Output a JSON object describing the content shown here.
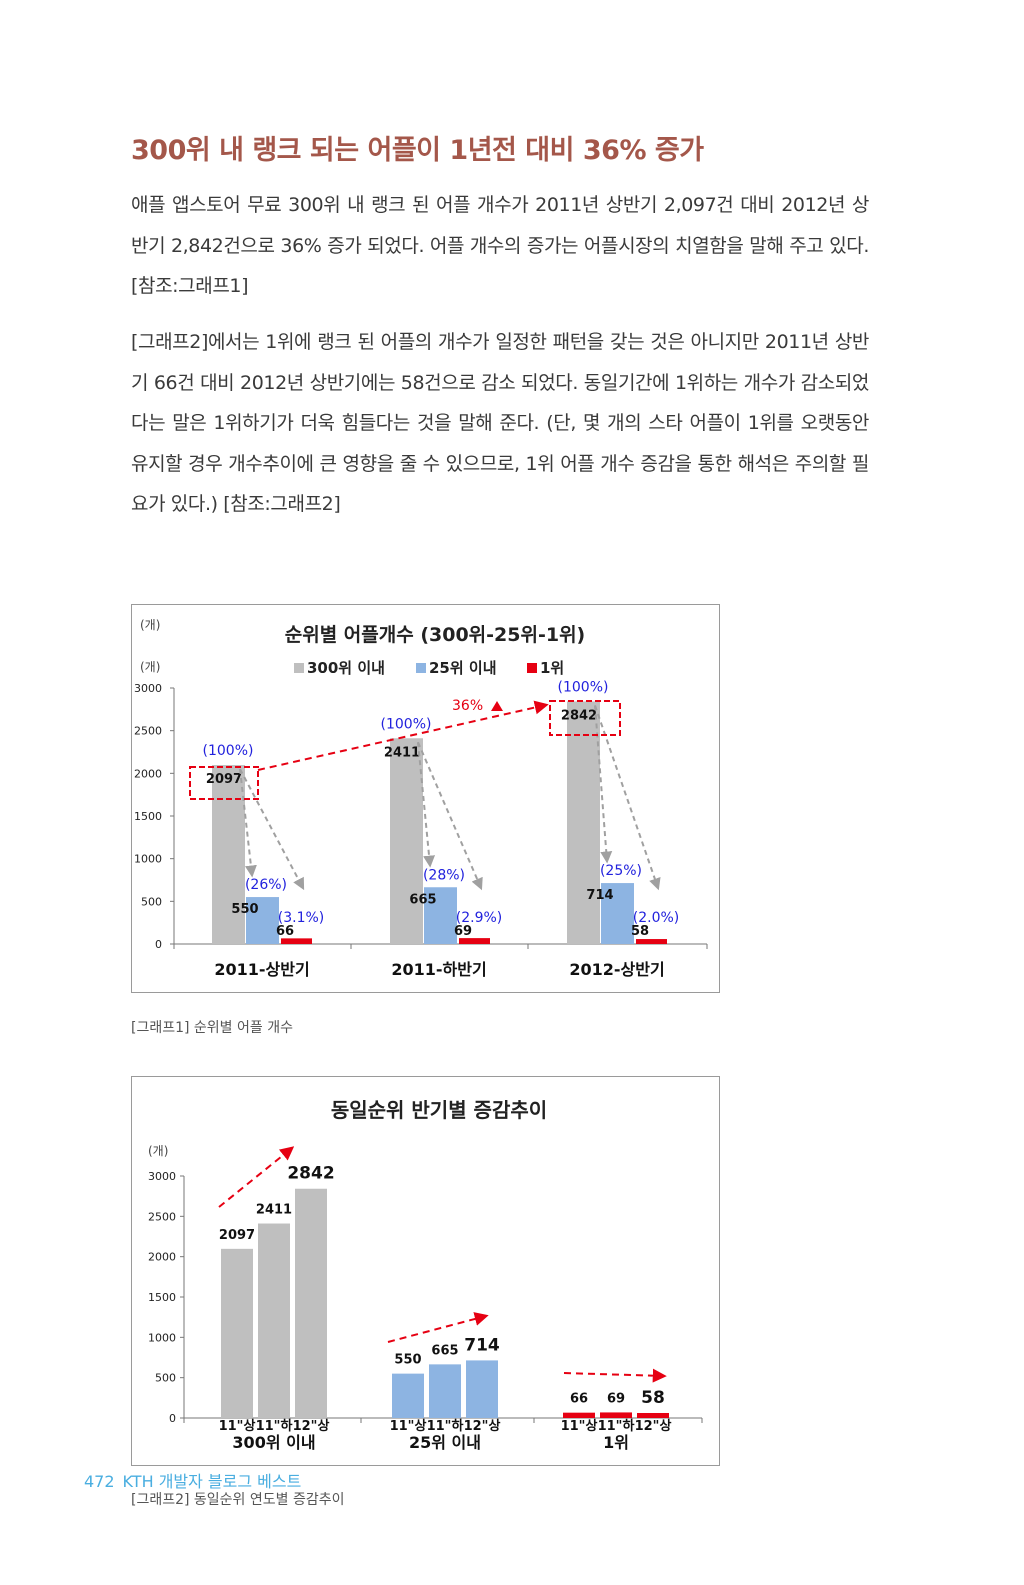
{
  "heading": "300위 내 랭크 되는 어플이 1년전 대비 36% 증가",
  "paragraphs": [
    "애플 앱스토어 무료 300위 내 랭크 된 어플 개수가 2011년 상반기 2,097건 대비 2012년 상반기 2,842건으로 36% 증가 되었다. 어플 개수의 증가는 어플시장의 치열함을 말해 주고 있다. [참조:그래프1]",
    "[그래프2]에서는 1위에 랭크 된 어플의 개수가 일정한 패턴을 갖는 것은 아니지만 2011년 상반기 66건 대비 2012년 상반기에는 58건으로 감소 되었다. 동일기간에 1위하는 개수가 감소되었다는 말은 1위하기가 더욱 힘들다는 것을 말해 준다. (단, 몇 개의 스타 어플이 1위를 오랫동안 유지할 경우 개수추이에 큰 영향을 줄 수 있으므로, 1위 어플 개수 증감을 통한 해석은 주의할 필요가 있다.) [참조:그래프2]"
  ],
  "captions": {
    "figure1": "[그래프1] 순위별 어플 개수",
    "figure2": "[그래프2] 동일순위 연도별 증감추이"
  },
  "footer": {
    "page_number": "472",
    "book_title": "KTH 개발자 블로그 베스트"
  },
  "colors": {
    "heading": "#a4574a",
    "top300": "#bfbfbf",
    "top25": "#8db4e2",
    "first": "#e60012",
    "annotation_blue": "#2222dd",
    "arrow_red": "#e60012",
    "arrow_gray": "#a0a0a0",
    "footer": "#4aaee0"
  },
  "chart_data": [
    {
      "type": "bar",
      "title": "순위별 어플개수 (300위-25위-1위)",
      "unit_label": "(개)",
      "ylabel": "(개)",
      "categories": [
        "2011-상반기",
        "2011-하반기",
        "2012-상반기"
      ],
      "series": [
        {
          "name": "300위 이내",
          "values": [
            2097,
            2411,
            2842
          ],
          "percent_labels": [
            "(100%)",
            "(100%)",
            "(100%)"
          ]
        },
        {
          "name": "25위 이내",
          "values": [
            550,
            665,
            714
          ],
          "percent_labels": [
            "(26%)",
            "(28%)",
            "(25%)"
          ]
        },
        {
          "name": "1위",
          "values": [
            66,
            69,
            58
          ],
          "percent_labels": [
            "(3.1%)",
            "(2.9%)",
            "(2.0%)"
          ]
        }
      ],
      "yticks": [
        0,
        500,
        1000,
        1500,
        2000,
        2500,
        3000
      ],
      "ylim": [
        0,
        3000
      ],
      "legend_position": "top",
      "grid": false,
      "annotation": "36%"
    },
    {
      "type": "bar",
      "title": "동일순위 반기별 증감추이",
      "ylabel": "(개)",
      "groups": [
        {
          "label": "300위 이내",
          "periods": [
            "11\"상",
            "11\"하",
            "12\"상"
          ],
          "values": [
            2097,
            2411,
            2842
          ]
        },
        {
          "label": "25위 이내",
          "periods": [
            "11\"상",
            "11\"하",
            "12\"상"
          ],
          "values": [
            550,
            665,
            714
          ]
        },
        {
          "label": "1위",
          "periods": [
            "11\"상",
            "11\"하",
            "12\"상"
          ],
          "values": [
            66,
            69,
            58
          ]
        }
      ],
      "yticks": [
        0,
        500,
        1000,
        1500,
        2000,
        2500,
        3000
      ],
      "ylim": [
        0,
        3000
      ],
      "grid": false
    }
  ]
}
